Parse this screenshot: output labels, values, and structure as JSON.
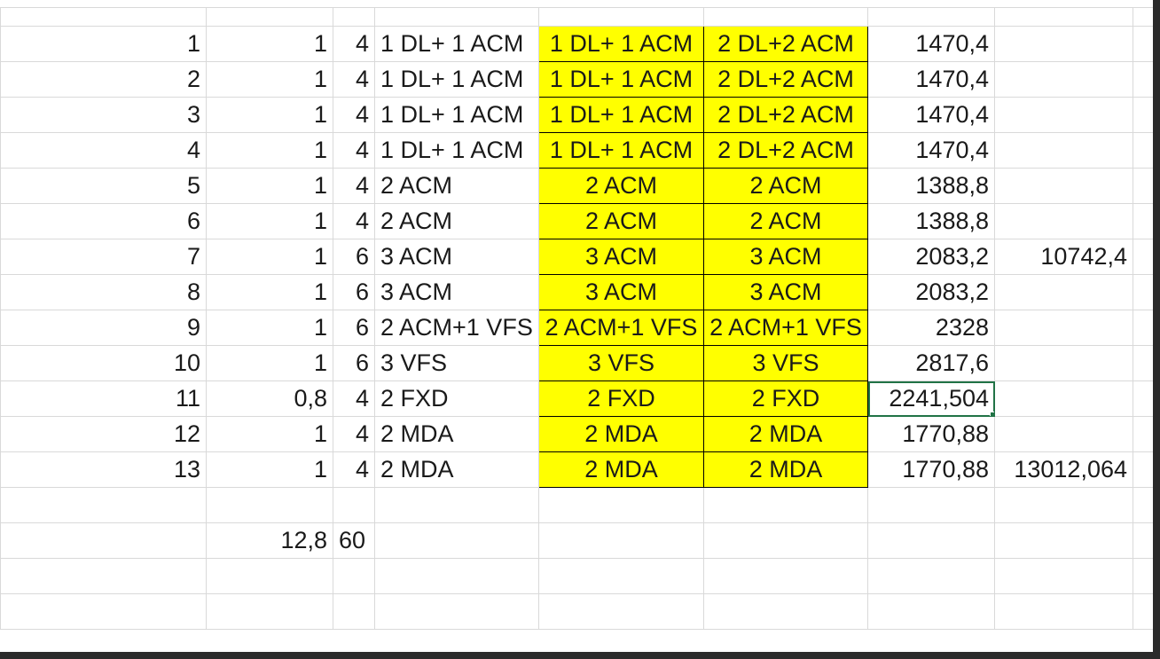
{
  "rows": [
    {
      "a": "1",
      "b": "1",
      "c": "4",
      "d": "1 DL+ 1 ACM",
      "e": "1 DL+ 1 ACM",
      "f": "2 DL+2 ACM",
      "g": "1470,4",
      "h": ""
    },
    {
      "a": "2",
      "b": "1",
      "c": "4",
      "d": "1 DL+ 1 ACM",
      "e": "1 DL+ 1 ACM",
      "f": "2 DL+2 ACM",
      "g": "1470,4",
      "h": ""
    },
    {
      "a": "3",
      "b": "1",
      "c": "4",
      "d": "1 DL+ 1 ACM",
      "e": "1 DL+ 1 ACM",
      "f": "2 DL+2 ACM",
      "g": "1470,4",
      "h": ""
    },
    {
      "a": "4",
      "b": "1",
      "c": "4",
      "d": "1 DL+ 1 ACM",
      "e": "1 DL+ 1 ACM",
      "f": "2 DL+2 ACM",
      "g": "1470,4",
      "h": ""
    },
    {
      "a": "5",
      "b": "1",
      "c": "4",
      "d": "2 ACM",
      "e": "2 ACM",
      "f": "2 ACM",
      "g": "1388,8",
      "h": ""
    },
    {
      "a": "6",
      "b": "1",
      "c": "4",
      "d": "2 ACM",
      "e": "2 ACM",
      "f": "2 ACM",
      "g": "1388,8",
      "h": ""
    },
    {
      "a": "7",
      "b": "1",
      "c": "6",
      "d": "3 ACM",
      "e": "3 ACM",
      "f": "3 ACM",
      "g": "2083,2",
      "h": "10742,4"
    },
    {
      "a": "8",
      "b": "1",
      "c": "6",
      "d": "3 ACM",
      "e": "3 ACM",
      "f": "3 ACM",
      "g": "2083,2",
      "h": ""
    },
    {
      "a": "9",
      "b": "1",
      "c": "6",
      "d": "2 ACM+1 VFS",
      "e": "2 ACM+1 VFS",
      "f": "2 ACM+1 VFS",
      "g": "2328",
      "h": ""
    },
    {
      "a": "10",
      "b": "1",
      "c": "6",
      "d": "3 VFS",
      "e": "3 VFS",
      "f": "3 VFS",
      "g": "2817,6",
      "h": ""
    },
    {
      "a": "11",
      "b": "0,8",
      "c": "4",
      "d": "2 FXD",
      "e": "2 FXD",
      "f": "2 FXD",
      "g": "2241,504",
      "h": ""
    },
    {
      "a": "12",
      "b": "1",
      "c": "4",
      "d": "2 MDA",
      "e": "2 MDA",
      "f": "2 MDA",
      "g": "1770,88",
      "h": ""
    },
    {
      "a": "13",
      "b": "1",
      "c": "4",
      "d": "2 MDA",
      "e": "2 MDA",
      "f": "2 MDA",
      "g": "1770,88",
      "h": "13012,064"
    }
  ],
  "totals": {
    "b": "12,8",
    "c": "60"
  },
  "selected_cell": {
    "row": 11,
    "column": "g"
  },
  "colors": {
    "highlight": "#ffff00",
    "selection": "#217346",
    "gridline": "#d9d9d9"
  }
}
